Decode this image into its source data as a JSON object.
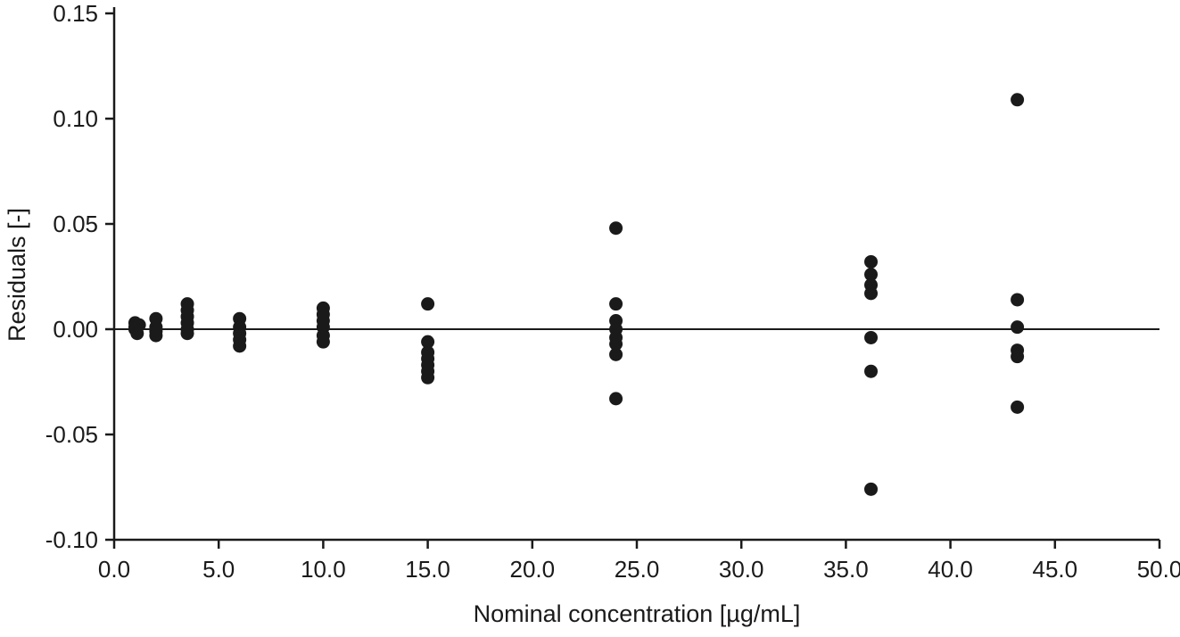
{
  "page": {
    "background": "#ffffff"
  },
  "chart_data": {
    "type": "scatter",
    "title": "",
    "xlabel": "Nominal concentration [µg/mL]",
    "ylabel": "Residuals [-]",
    "xlim": [
      0,
      50
    ],
    "ylim": [
      -0.1,
      0.15
    ],
    "xticks": [
      0,
      5,
      10,
      15,
      20,
      25,
      30,
      35,
      40,
      45,
      50
    ],
    "xtick_labels": [
      "0.0",
      "5.0",
      "10.0",
      "15.0",
      "20.0",
      "25.0",
      "30.0",
      "35.0",
      "40.0",
      "45.0",
      "50.0"
    ],
    "yticks": [
      -0.1,
      -0.05,
      0.0,
      0.05,
      0.1,
      0.15
    ],
    "ytick_labels": [
      "-0.10",
      "-0.05",
      "0.00",
      "0.05",
      "0.10",
      "0.15"
    ],
    "grid": false,
    "legend": "none",
    "zero_line": true,
    "axis_color": "#1a1a1a",
    "marker_color": "#1a1a1a",
    "points": [
      {
        "x": 1.0,
        "y": 0.003
      },
      {
        "x": 1.0,
        "y": 0.001
      },
      {
        "x": 1.2,
        "y": 0.002
      },
      {
        "x": 1.0,
        "y": 0.0
      },
      {
        "x": 1.1,
        "y": -0.002
      },
      {
        "x": 2.0,
        "y": 0.005
      },
      {
        "x": 2.0,
        "y": 0.001
      },
      {
        "x": 2.0,
        "y": -0.001
      },
      {
        "x": 2.0,
        "y": -0.003
      },
      {
        "x": 3.5,
        "y": 0.012
      },
      {
        "x": 3.5,
        "y": 0.009
      },
      {
        "x": 3.5,
        "y": 0.006
      },
      {
        "x": 3.5,
        "y": 0.003
      },
      {
        "x": 3.5,
        "y": 0.0
      },
      {
        "x": 3.5,
        "y": -0.002
      },
      {
        "x": 6.0,
        "y": 0.005
      },
      {
        "x": 6.0,
        "y": 0.001
      },
      {
        "x": 6.0,
        "y": -0.002
      },
      {
        "x": 6.0,
        "y": -0.005
      },
      {
        "x": 6.0,
        "y": -0.008
      },
      {
        "x": 10.0,
        "y": 0.01
      },
      {
        "x": 10.0,
        "y": 0.007
      },
      {
        "x": 10.0,
        "y": 0.004
      },
      {
        "x": 10.0,
        "y": 0.001
      },
      {
        "x": 10.0,
        "y": -0.003
      },
      {
        "x": 10.0,
        "y": -0.006
      },
      {
        "x": 15.0,
        "y": 0.012
      },
      {
        "x": 15.0,
        "y": -0.006
      },
      {
        "x": 15.0,
        "y": -0.011
      },
      {
        "x": 15.0,
        "y": -0.014
      },
      {
        "x": 15.0,
        "y": -0.017
      },
      {
        "x": 15.0,
        "y": -0.02
      },
      {
        "x": 15.0,
        "y": -0.023
      },
      {
        "x": 24.0,
        "y": 0.048
      },
      {
        "x": 24.0,
        "y": 0.012
      },
      {
        "x": 24.0,
        "y": 0.004
      },
      {
        "x": 24.0,
        "y": 0.0
      },
      {
        "x": 24.0,
        "y": -0.004
      },
      {
        "x": 24.0,
        "y": -0.007
      },
      {
        "x": 24.0,
        "y": -0.012
      },
      {
        "x": 24.0,
        "y": -0.033
      },
      {
        "x": 36.2,
        "y": 0.032
      },
      {
        "x": 36.2,
        "y": 0.026
      },
      {
        "x": 36.2,
        "y": 0.021
      },
      {
        "x": 36.2,
        "y": 0.017
      },
      {
        "x": 36.2,
        "y": -0.004
      },
      {
        "x": 36.2,
        "y": -0.02
      },
      {
        "x": 36.2,
        "y": -0.076
      },
      {
        "x": 43.2,
        "y": 0.109
      },
      {
        "x": 43.2,
        "y": 0.014
      },
      {
        "x": 43.2,
        "y": 0.001
      },
      {
        "x": 43.2,
        "y": -0.01
      },
      {
        "x": 43.2,
        "y": -0.013
      },
      {
        "x": 43.2,
        "y": -0.037
      }
    ]
  }
}
